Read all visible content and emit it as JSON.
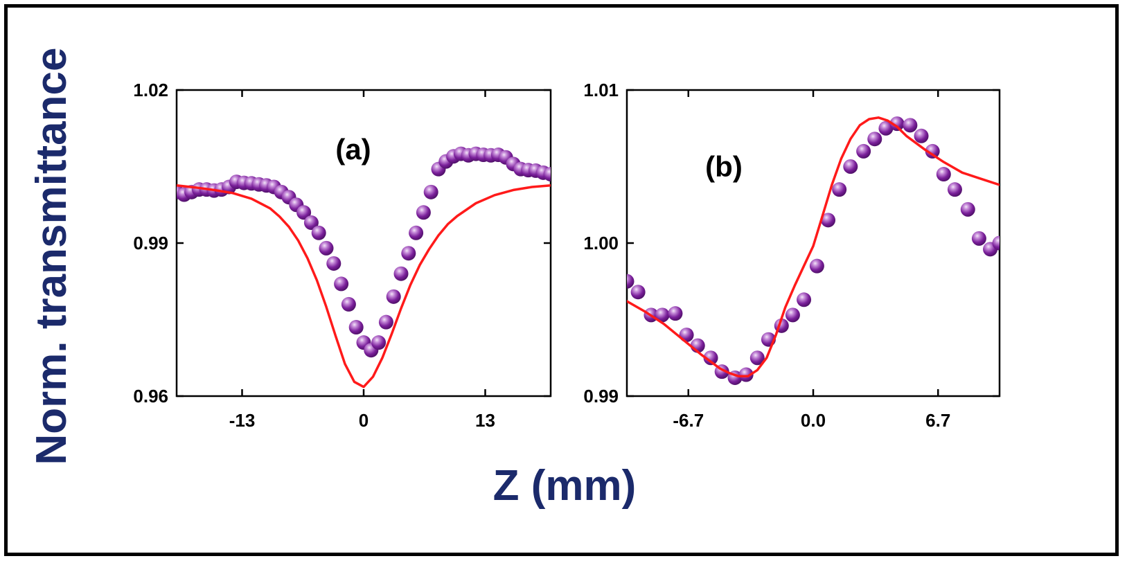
{
  "figure": {
    "ylabel": "Norm. transmittance",
    "xlabel": "Z (mm)",
    "label_color": "#1b2a6b",
    "marker_color": "#7a1f9a",
    "marker_highlight": "#f3e6f8",
    "fit_color": "#ff1a1a"
  },
  "chart_data": [
    {
      "type": "scatter",
      "panel_label": "(a)",
      "xlim": [
        -20,
        20
      ],
      "ylim": [
        0.96,
        1.02
      ],
      "xticks": [
        -13,
        0,
        13
      ],
      "xtick_labels": [
        "-13",
        "0",
        "13"
      ],
      "yticks": [
        0.96,
        0.99,
        1.02
      ],
      "ytick_labels": [
        "0.96",
        "0.99",
        "1.02"
      ],
      "series": [
        {
          "name": "experimental",
          "kind": "markers",
          "x": [
            -20,
            -19.2,
            -18.4,
            -17.6,
            -16.8,
            -16,
            -15.2,
            -14.4,
            -13.6,
            -12.8,
            -12,
            -11.2,
            -10.4,
            -9.6,
            -8.8,
            -8,
            -7.2,
            -6.4,
            -5.6,
            -4.8,
            -4,
            -3.2,
            -2.4,
            -1.6,
            -0.8,
            0,
            0.8,
            1.6,
            2.4,
            3.2,
            4,
            4.8,
            5.6,
            6.4,
            7.2,
            8,
            8.8,
            9.6,
            10.4,
            11.2,
            12,
            12.8,
            13.6,
            14.4,
            15.2,
            16,
            16.8,
            17.6,
            18.4,
            19.2,
            20
          ],
          "y": [
            1.0,
            0.9995,
            1.0,
            1.0005,
            1.0005,
            1.0003,
            1.0005,
            1.001,
            1.002,
            1.0018,
            1.0017,
            1.0015,
            1.0013,
            1.001,
            1.0,
            0.999,
            0.9975,
            0.996,
            0.994,
            0.992,
            0.989,
            0.986,
            0.982,
            0.978,
            0.9735,
            0.9705,
            0.969,
            0.9705,
            0.9745,
            0.9795,
            0.984,
            0.988,
            0.992,
            0.996,
            1.0,
            1.0045,
            1.006,
            1.007,
            1.0075,
            1.0072,
            1.0075,
            1.0073,
            1.0072,
            1.0073,
            1.0068,
            1.0055,
            1.0045,
            1.0043,
            1.0042,
            1.0038,
            1.0035
          ]
        },
        {
          "name": "fit",
          "kind": "line",
          "x": [
            -20,
            -18,
            -16,
            -14,
            -12,
            -10,
            -9,
            -8,
            -7,
            -6,
            -5,
            -4,
            -3,
            -2,
            -1,
            0,
            1,
            2,
            3,
            4,
            5,
            6,
            7,
            8,
            9,
            10,
            12,
            14,
            16,
            18,
            20
          ],
          "y": [
            1.0013,
            1.0009,
            1.0004,
            0.9998,
            0.9987,
            0.9968,
            0.9952,
            0.9932,
            0.9905,
            0.987,
            0.9827,
            0.9775,
            0.9718,
            0.9663,
            0.9628,
            0.9618,
            0.9638,
            0.9675,
            0.9722,
            0.9772,
            0.9818,
            0.9857,
            0.9888,
            0.9915,
            0.9937,
            0.9953,
            0.9978,
            0.9994,
            1.0004,
            1.001,
            1.0013
          ]
        }
      ]
    },
    {
      "type": "scatter",
      "panel_label": "(b)",
      "xlim": [
        -10,
        10
      ],
      "ylim": [
        0.99,
        1.01
      ],
      "xticks": [
        -6.7,
        0.0,
        6.7
      ],
      "xtick_labels": [
        "-6.7",
        "0.0",
        "6.7"
      ],
      "yticks": [
        0.99,
        1.0,
        1.01
      ],
      "ytick_labels": [
        "0.99",
        "1.00",
        "1.01"
      ],
      "series": [
        {
          "name": "experimental",
          "kind": "markers",
          "x": [
            -10,
            -9.4,
            -8.7,
            -8.1,
            -7.4,
            -6.8,
            -6.2,
            -5.5,
            -4.9,
            -4.2,
            -3.6,
            -3.0,
            -2.4,
            -1.7,
            -1.1,
            -0.5,
            0.2,
            0.8,
            1.4,
            2.0,
            2.7,
            3.3,
            3.9,
            4.5,
            5.2,
            5.8,
            6.4,
            7.0,
            7.6,
            8.3,
            8.9,
            9.5,
            10
          ],
          "y": [
            0.9975,
            0.9968,
            0.9953,
            0.9953,
            0.9954,
            0.994,
            0.9933,
            0.9925,
            0.9916,
            0.9912,
            0.9914,
            0.9925,
            0.9937,
            0.9946,
            0.9953,
            0.9963,
            0.9985,
            1.0015,
            1.0035,
            1.005,
            1.006,
            1.0068,
            1.0075,
            1.0078,
            1.0077,
            1.007,
            1.006,
            1.0045,
            1.0035,
            1.0022,
            1.0003,
            0.9996,
            1.0
          ]
        },
        {
          "name": "fit",
          "kind": "line",
          "x": [
            -10,
            -9,
            -8,
            -7,
            -6,
            -5,
            -4.5,
            -4,
            -3.5,
            -3,
            -2.5,
            -2,
            -1.5,
            -1,
            -0.5,
            0,
            0.5,
            1,
            1.5,
            2,
            2.5,
            3,
            3.5,
            4,
            4.5,
            5,
            6,
            7,
            8,
            9,
            10
          ],
          "y": [
            0.9962,
            0.9955,
            0.9947,
            0.9937,
            0.9927,
            0.9918,
            0.9915,
            0.9913,
            0.9913,
            0.9917,
            0.9925,
            0.994,
            0.9958,
            0.9972,
            0.9985,
            0.9998,
            1.0018,
            1.0038,
            1.0055,
            1.0068,
            1.0077,
            1.0081,
            1.0082,
            1.008,
            1.0076,
            1.007,
            1.0061,
            1.0053,
            1.0046,
            1.0042,
            1.0038
          ]
        }
      ]
    }
  ]
}
